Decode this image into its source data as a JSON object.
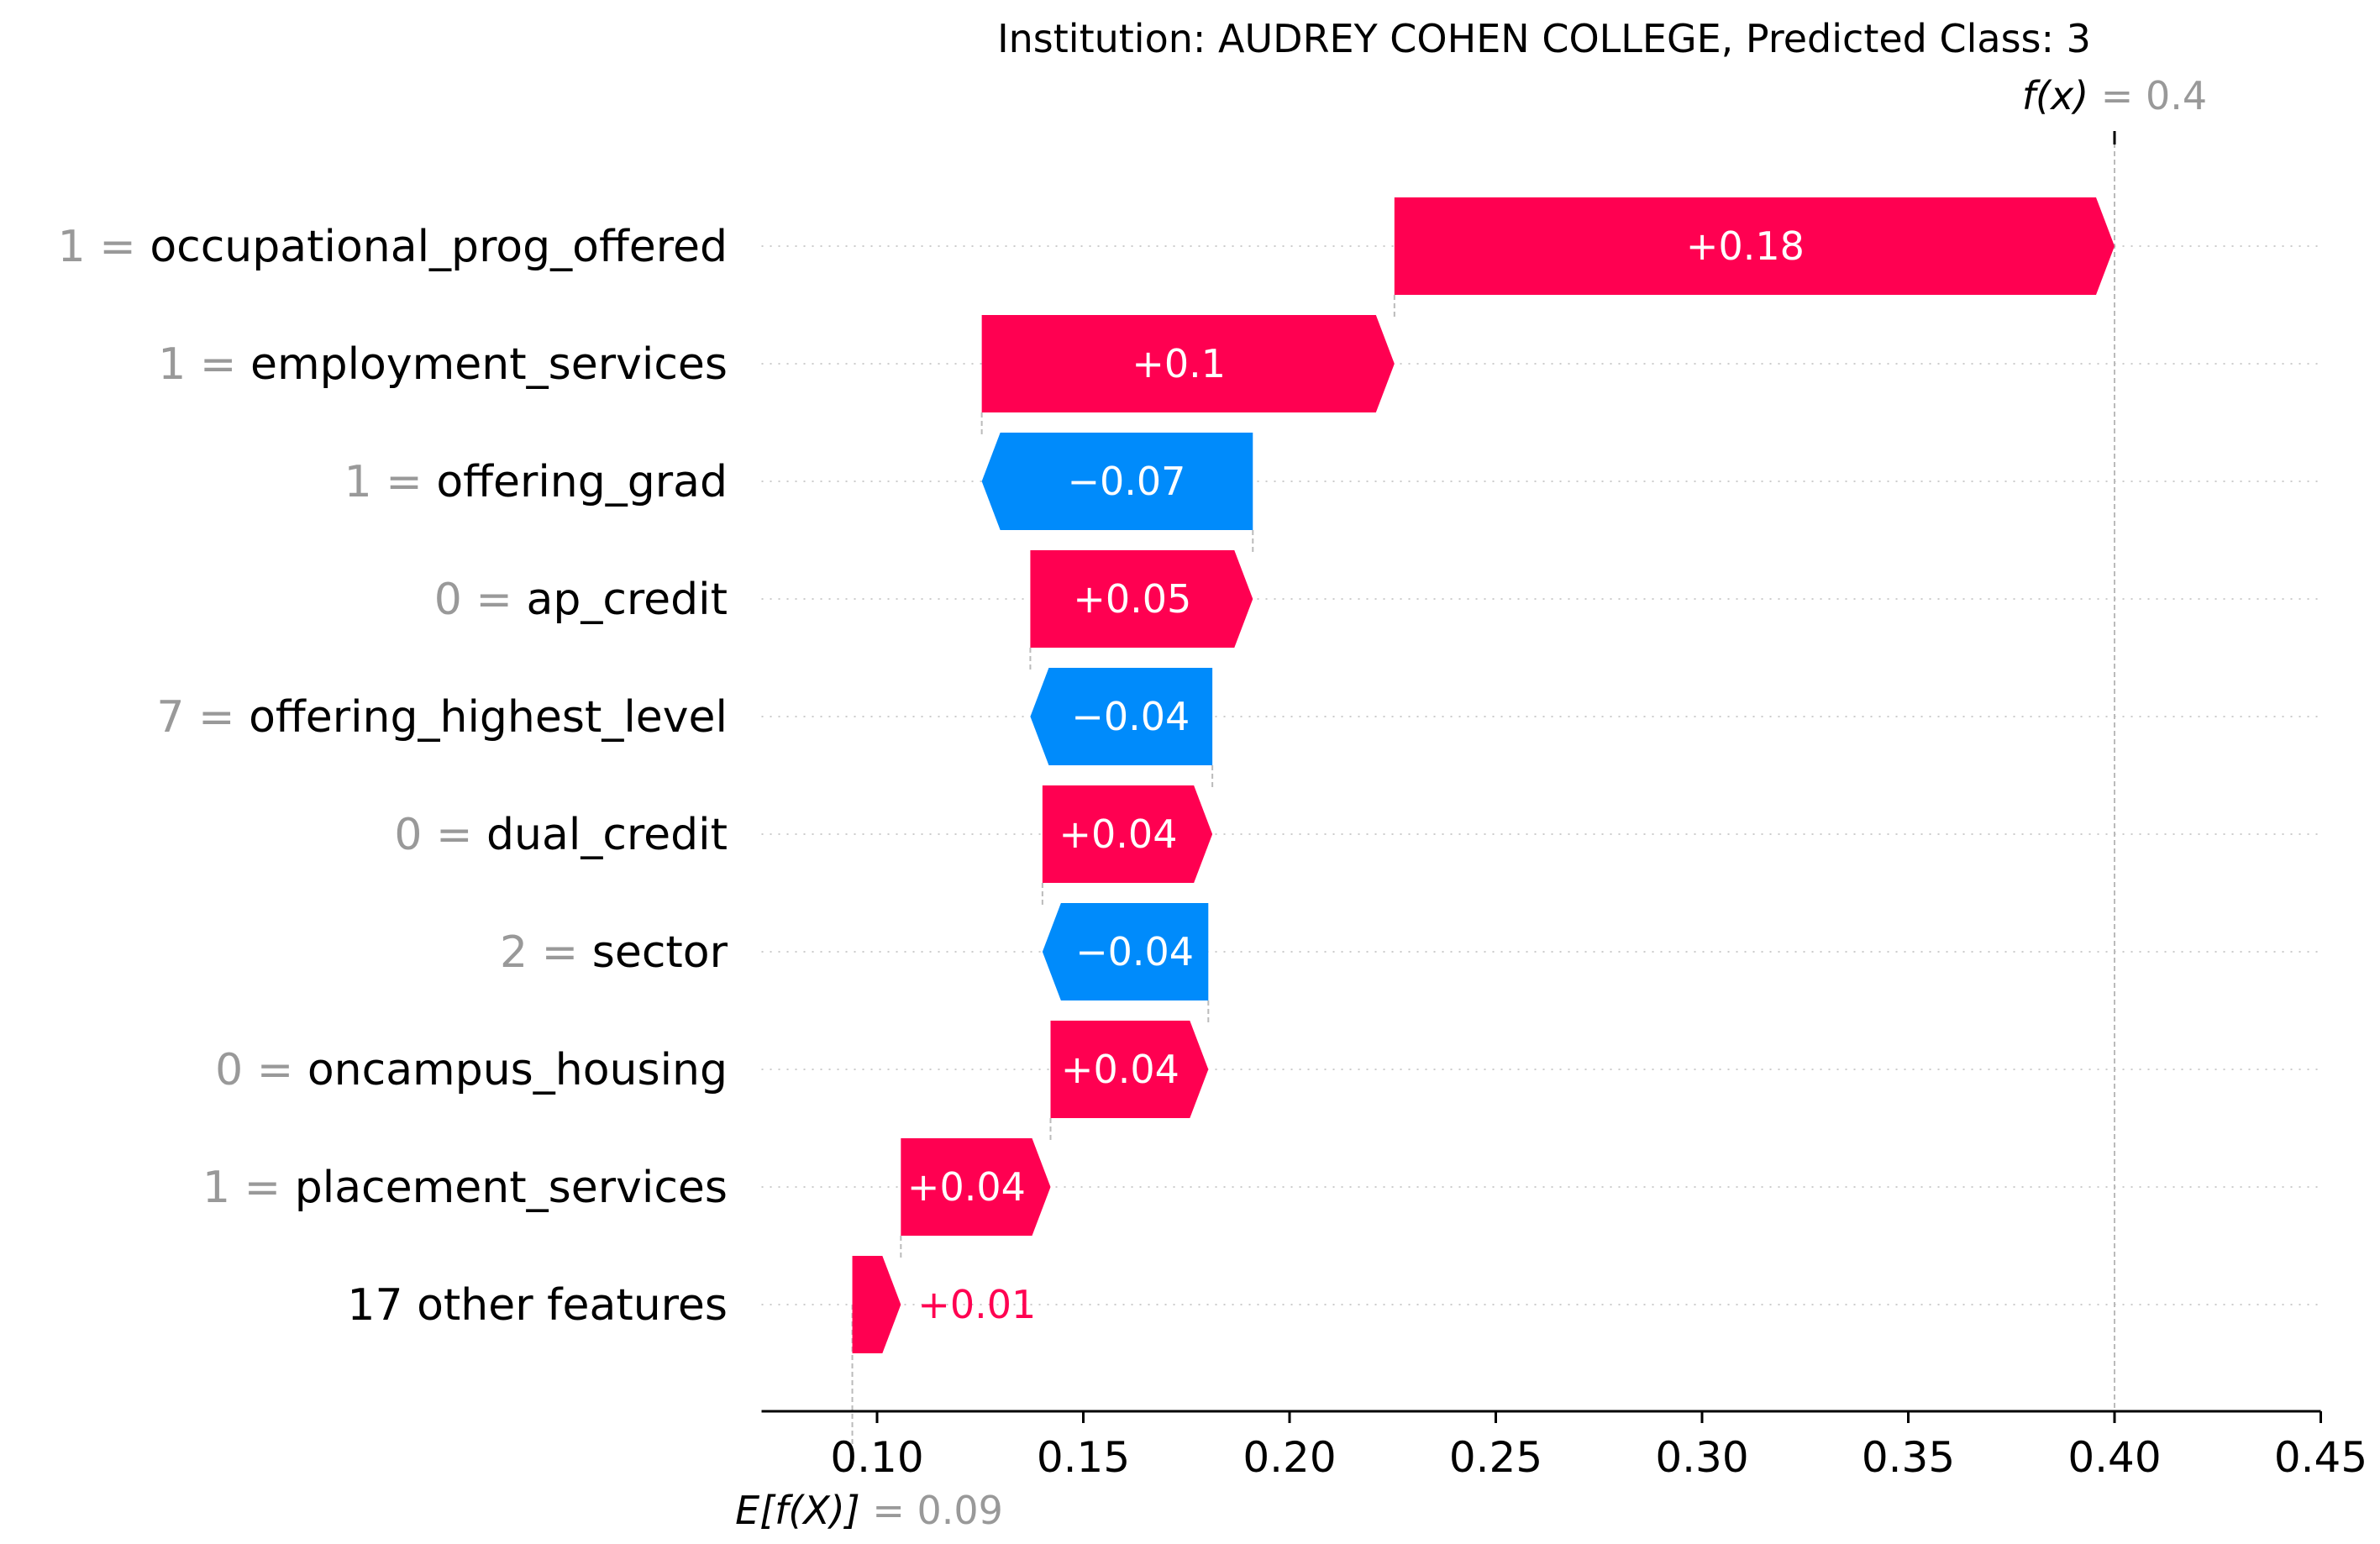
{
  "chart_data": {
    "type": "waterfall",
    "title": "Institution: AUDREY COHEN COLLEGE, Predicted Class: 3",
    "base_value": 0.094,
    "base_value_label": "0.09",
    "output_value": 0.4,
    "output_value_label": "0.4",
    "fx_label": "f(x)",
    "efx_label": "E[f(X)]",
    "xlim": [
      0.072,
      0.45
    ],
    "xticks": [
      "0.10",
      "0.15",
      "0.20",
      "0.25",
      "0.30",
      "0.35",
      "0.40",
      "0.45"
    ],
    "xtick_values": [
      0.1,
      0.15,
      0.2,
      0.25,
      0.3,
      0.35,
      0.4,
      0.45
    ],
    "features": [
      {
        "value": "1",
        "name": "occupational_prog_offered",
        "contribution": 0.178,
        "label": "+0.18"
      },
      {
        "value": "1",
        "name": "employment_services",
        "contribution": 0.102,
        "label": "+0.1"
      },
      {
        "value": "1",
        "name": "offering_grad",
        "contribution": -0.067,
        "label": "−0.07"
      },
      {
        "value": "0",
        "name": "ap_credit",
        "contribution": 0.055,
        "label": "+0.05"
      },
      {
        "value": "7",
        "name": "offering_highest_level",
        "contribution": -0.045,
        "label": "−0.04"
      },
      {
        "value": "0",
        "name": "dual_credit",
        "contribution": 0.042,
        "label": "+0.04"
      },
      {
        "value": "2",
        "name": "sector",
        "contribution": -0.041,
        "label": "−0.04"
      },
      {
        "value": "0",
        "name": "oncampus_housing",
        "contribution": 0.039,
        "label": "+0.04"
      },
      {
        "value": "1",
        "name": "placement_services",
        "contribution": 0.037,
        "label": "+0.04"
      },
      {
        "value": "",
        "name": "17 other features",
        "contribution": 0.012,
        "label": "+0.01"
      }
    ],
    "colors": {
      "positive": "#ff0051",
      "negative": "#008bfb",
      "grey_text": "#999999",
      "guide": "#bbbbbb"
    }
  }
}
